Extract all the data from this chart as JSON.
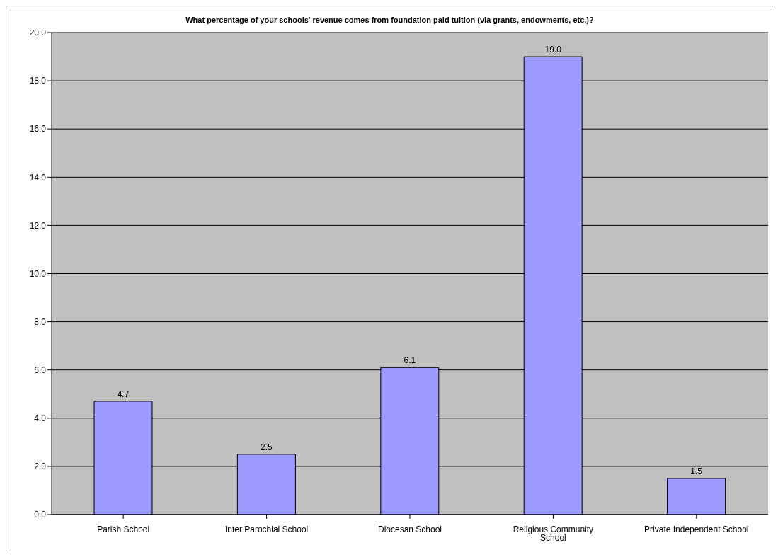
{
  "chart_data": {
    "type": "bar",
    "title": "What percentage of your schools' revenue comes from foundation paid tuition (via grants, endowments, etc.)?",
    "categories": [
      "Parish School",
      "Inter Parochial School",
      "Diocesan School",
      "Religious Community School",
      "Private Independent School"
    ],
    "values": [
      4.7,
      2.5,
      6.1,
      19.0,
      1.5
    ],
    "value_labels": [
      "4.7",
      "2.5",
      "6.1",
      "19.0",
      "1.5"
    ],
    "color": "#9999ff",
    "ylim": [
      0,
      20
    ],
    "yticks": [
      {
        "value": 0,
        "label": "0.0"
      },
      {
        "value": 2,
        "label": "2.0"
      },
      {
        "value": 4,
        "label": "4.0"
      },
      {
        "value": 6,
        "label": "6.0"
      },
      {
        "value": 8,
        "label": "8.0"
      },
      {
        "value": 10,
        "label": "10.0"
      },
      {
        "value": 12,
        "label": "12.0"
      },
      {
        "value": 14,
        "label": "14.0"
      },
      {
        "value": 16,
        "label": "16.0"
      },
      {
        "value": 18,
        "label": "18.0"
      },
      {
        "value": 20,
        "label": "20.0"
      }
    ],
    "grid": "y",
    "legend": false
  }
}
